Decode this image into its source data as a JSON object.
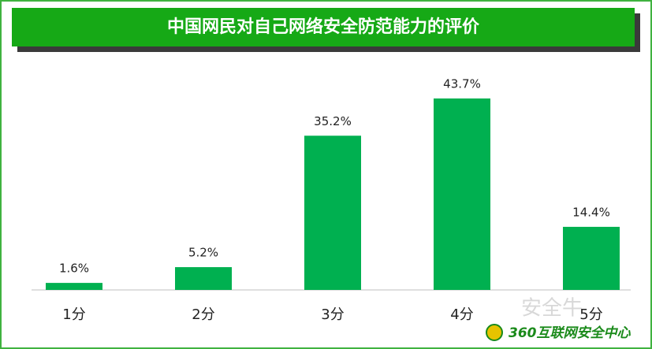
{
  "chart_data": {
    "type": "bar",
    "title": "中国网民对自己网络安全防范能力的评价",
    "categories": [
      "1分",
      "2分",
      "3分",
      "4分",
      "5分"
    ],
    "values": [
      1.6,
      5.2,
      35.2,
      43.7,
      14.4
    ],
    "value_labels": [
      "1.6%",
      "5.2%",
      "35.2%",
      "43.7%",
      "14.4%"
    ],
    "color": "#00b050"
  },
  "watermark": {
    "brand": "360互联网安全中心",
    "site": "安全牛"
  }
}
